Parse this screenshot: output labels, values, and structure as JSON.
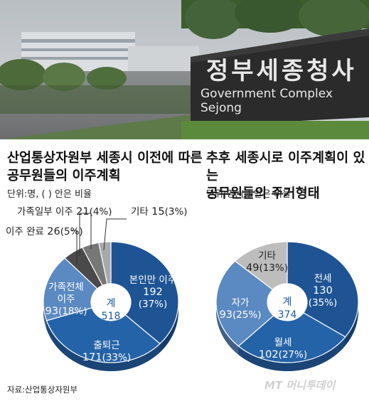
{
  "photo": {
    "sign_korean": "정부세종청사",
    "sign_english": "Government Complex Sejong"
  },
  "chart_data": [
    {
      "type": "pie",
      "title": "산업통상자원부 세종시 이전에 따른 공무원들의 이주계획",
      "title_line1": "산업통상자원부 세종시 이전에 따른",
      "title_line2": "공무원들의 이주계획",
      "subtitle": "단위:명, ( ) 안은 비율",
      "center_label": "계",
      "total": 518,
      "slices": [
        {
          "label": "본인만 이주",
          "value": 192,
          "percent": "(37%)",
          "color": "#1e5494"
        },
        {
          "label": "출퇴근",
          "value": 171,
          "percent": "(33%)",
          "color": "#2563a8"
        },
        {
          "label": "가족전체 이주",
          "value": 93,
          "percent": "(18%)",
          "color": "#5b89c2"
        },
        {
          "label": "이주 완료",
          "value": 26,
          "percent": "(5%)",
          "color": "#4a4a4a"
        },
        {
          "label": "가족일부 이주",
          "value": 21,
          "percent": "(4%)",
          "color": "#777777"
        },
        {
          "label": "기타",
          "value": 15,
          "percent": "(3%)",
          "color": "#a9a9a9"
        }
      ]
    },
    {
      "type": "pie",
      "title": "추후 세종시로 이주계획이 있는 공무원들의 주거형태",
      "title_line1": "추후 세종시로 이주계획이 있는",
      "title_line2": "공무원들의 주거형태",
      "subtitle": "단위:명, ( ) 안은 비율",
      "center_label": "계",
      "total": 374,
      "slices": [
        {
          "label": "전세",
          "value": 130,
          "percent": "(35%)",
          "color": "#1e5494"
        },
        {
          "label": "월세",
          "value": 102,
          "percent": "(27%)",
          "color": "#2563a8"
        },
        {
          "label": "자가",
          "value": 93,
          "percent": "(25%)",
          "color": "#5b89c2"
        },
        {
          "label": "기타",
          "value": 49,
          "percent": "(13%)",
          "color": "#bdbdbd"
        }
      ]
    }
  ],
  "labels": {
    "left_chart": {
      "l1": "본인만 이주",
      "l1v": "192",
      "l1p": "(37%)",
      "l2": "출퇴근",
      "l2v": "171",
      "l2p": "(33%)",
      "l3a": "가족전체",
      "l3b": "이주",
      "l3v": "93",
      "l3p": "(18%)",
      "l4": "이주 완료",
      "l4v": "26",
      "l4p": "(5%)",
      "l5": "가족일부 이주",
      "l5v": "21",
      "l5p": "(4%)",
      "l6": "기타",
      "l6v": "15",
      "l6p": "(3%)",
      "c1": "계",
      "c2": "518"
    },
    "right_chart": {
      "r1": "전세",
      "r1v": "130",
      "r1p": "(35%)",
      "r2": "월세",
      "r2v": "102",
      "r2p": "(27%)",
      "r3": "자가",
      "r3v": "93",
      "r3p": "(25%)",
      "r4": "기타",
      "r4v": "49",
      "r4p": "(13%)",
      "c1": "계",
      "c2": "374"
    }
  },
  "source": "자료:산업통상자원부",
  "watermark": "MT 머니투데이"
}
